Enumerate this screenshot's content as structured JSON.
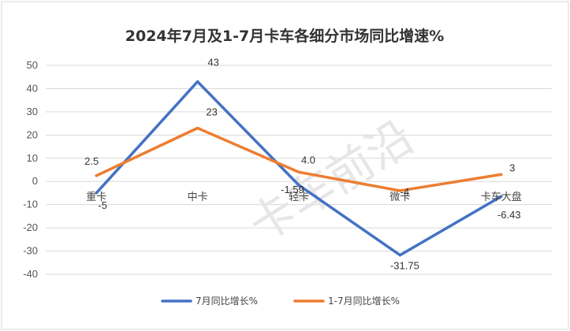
{
  "chart_data": {
    "type": "line",
    "title": "2024年7月及1-7月卡车各细分市场同比增速%",
    "categories": [
      "重卡",
      "中卡",
      "轻卡",
      "微卡",
      "卡车大盘"
    ],
    "series": [
      {
        "name": "7月同比增长%",
        "color": "#4472C4",
        "values": [
          -5,
          43,
          -1.59,
          -31.75,
          -6.43
        ],
        "labels": [
          "-5",
          "43",
          "-1.59",
          "-31.75",
          "-6.43"
        ]
      },
      {
        "name": "1-7月同比增长%",
        "color": "#ED7D31",
        "values": [
          2.5,
          23,
          4.0,
          -4,
          3
        ],
        "labels": [
          "2.5",
          "23",
          "4.0",
          "-4",
          "3"
        ]
      }
    ],
    "ylim": [
      -40,
      50
    ],
    "yticks": [
      -40,
      -30,
      -20,
      -10,
      0,
      10,
      20,
      30,
      40,
      50
    ],
    "xlabel": "",
    "ylabel": "",
    "grid": true,
    "legend_position": "bottom"
  },
  "watermark": "卡车前沿"
}
